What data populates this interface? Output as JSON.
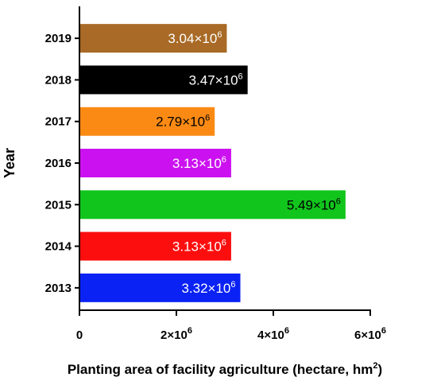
{
  "chart_data": {
    "type": "bar",
    "orientation": "horizontal",
    "title": "",
    "xlabel": "Planting area of facility agriculture (hectare, hm",
    "xlabel_sup": "2",
    "xlabel_end": ")",
    "ylabel": "Year",
    "categories": [
      "2013",
      "2014",
      "2015",
      "2016",
      "2017",
      "2018",
      "2019"
    ],
    "values": [
      3320000,
      3130000,
      5490000,
      3130000,
      2790000,
      3470000,
      3040000
    ],
    "data_labels": [
      {
        "base": "3.32×10",
        "exp": "6"
      },
      {
        "base": "3.13×10",
        "exp": "6"
      },
      {
        "base": "5.49×10",
        "exp": "6"
      },
      {
        "base": "3.13×10",
        "exp": "6"
      },
      {
        "base": "2.79×10",
        "exp": "6"
      },
      {
        "base": "3.47×10",
        "exp": "6"
      },
      {
        "base": "3.04×10",
        "exp": "6"
      }
    ],
    "bar_colors": [
      "#0b22f5",
      "#fc0e0e",
      "#12c51c",
      "#cc11f0",
      "#fb8a14",
      "#000000",
      "#a86a26"
    ],
    "label_colors": [
      "#ffffff",
      "#ffffff",
      "#000000",
      "#ffffff",
      "#000000",
      "#ffffff",
      "#ffffff"
    ],
    "xlim": [
      0,
      6000000
    ],
    "xticks": [
      {
        "value": 0,
        "base": "0",
        "exp": ""
      },
      {
        "value": 2000000,
        "base": "2×10",
        "exp": "6"
      },
      {
        "value": 4000000,
        "base": "4×10",
        "exp": "6"
      },
      {
        "value": 6000000,
        "base": "6×10",
        "exp": "6"
      }
    ],
    "legend": "none",
    "grid": false
  }
}
